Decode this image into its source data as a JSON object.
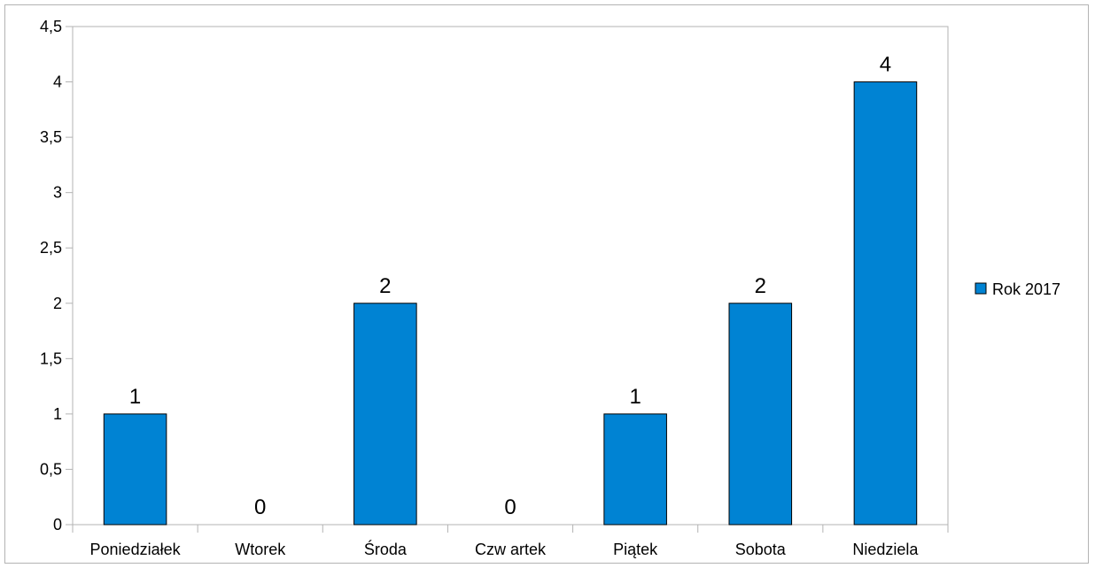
{
  "chart_data": {
    "type": "bar",
    "title": "",
    "xlabel": "",
    "ylabel": "",
    "categories": [
      "Poniedziałek",
      "Wtorek",
      "Środa",
      "Czw artek",
      "Piątek",
      "Sobota",
      "Niedziela"
    ],
    "series": [
      {
        "name": "Rok 2017",
        "values": [
          1,
          0,
          2,
          0,
          1,
          2,
          4
        ],
        "color": "#0083d3"
      }
    ],
    "ylim": [
      0,
      4.5
    ],
    "yticks": [
      "0",
      "0,5",
      "1",
      "1,5",
      "2",
      "2,5",
      "3",
      "3,5",
      "4",
      "4,5"
    ],
    "data_labels": true,
    "grid": false,
    "legend_position": "right"
  }
}
